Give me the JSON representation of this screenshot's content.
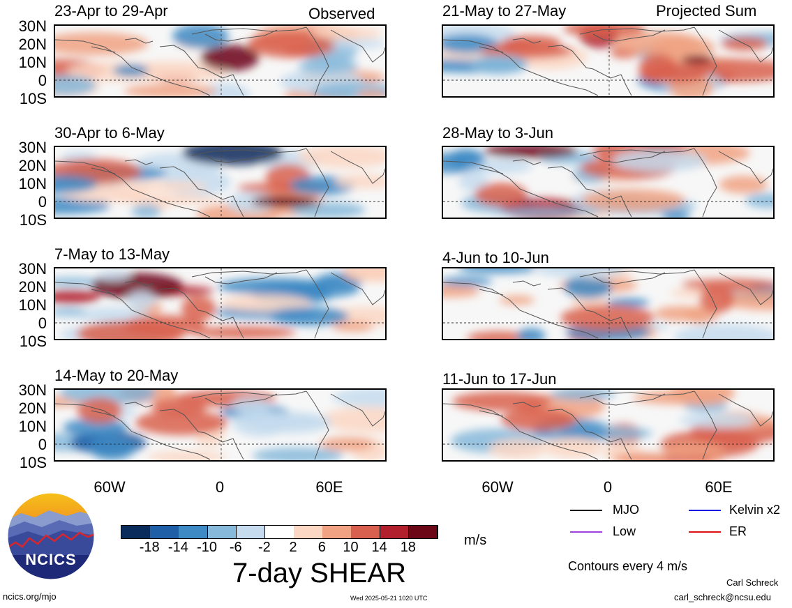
{
  "header": {
    "left_label": "Observed",
    "right_label": "Projected Sum"
  },
  "observed_panels": [
    {
      "title": "23-Apr to 29-Apr"
    },
    {
      "title": "30-Apr to 6-May"
    },
    {
      "title": "7-May to 13-May"
    },
    {
      "title": "14-May to 20-May"
    }
  ],
  "projected_panels": [
    {
      "title": "21-May to 27-May"
    },
    {
      "title": "28-May to 3-Jun"
    },
    {
      "title": "4-Jun to 10-Jun"
    },
    {
      "title": "11-Jun to 17-Jun"
    }
  ],
  "lat_labels": [
    "30N",
    "20N",
    "10N",
    "0",
    "10S"
  ],
  "lon_labels": [
    "60W",
    "0",
    "60E"
  ],
  "colorbar": {
    "colors": [
      "#0a2c5c",
      "#1f5fa8",
      "#3d8ac4",
      "#86b9da",
      "#c6dcee",
      "#ffffff",
      "#fbd7c4",
      "#f0a283",
      "#d9604e",
      "#b21f2d",
      "#6b0716"
    ],
    "tick_labels": [
      "-18",
      "-14",
      "-10",
      "-6",
      "-2",
      "2",
      "6",
      "10",
      "14",
      "18"
    ],
    "units": "m/s"
  },
  "figure_title": "7-day SHEAR",
  "legend": {
    "items": [
      {
        "label": "MJO",
        "color": "#000000"
      },
      {
        "label": "Kelvin x2",
        "color": "#1010e0"
      },
      {
        "label": "Low",
        "color": "#a040e0"
      },
      {
        "label": "ER",
        "color": "#e01010"
      }
    ],
    "contour_note": "Contours every 4 m/s"
  },
  "logo": {
    "text": "NCICS"
  },
  "footer": {
    "url": "ncics.org/mjo",
    "timestamp": "Wed 2025-05-21 1020 UTC",
    "author": "Carl Schreck",
    "email": "carl_schreck@ncsu.edu"
  }
}
